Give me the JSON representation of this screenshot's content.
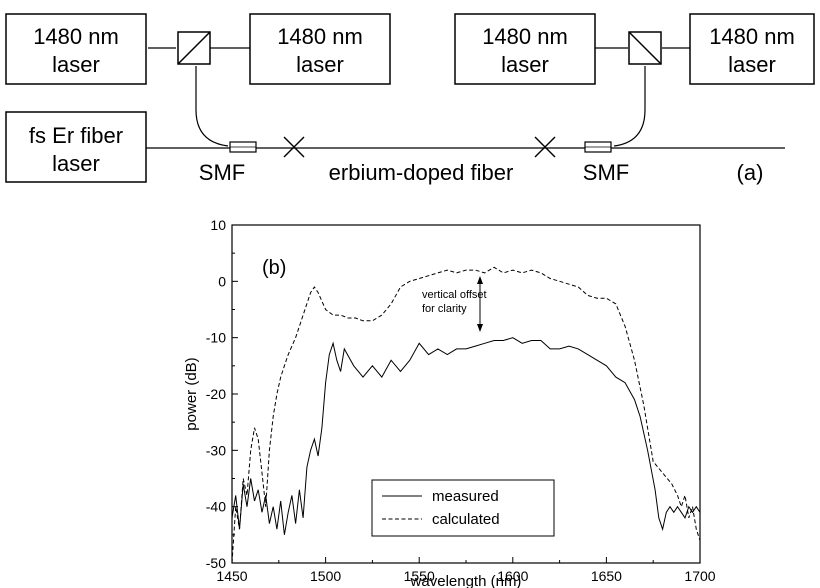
{
  "setup": {
    "boxes": [
      {
        "id": "laser-top-1",
        "lines": [
          "1480 nm",
          "laser"
        ]
      },
      {
        "id": "laser-top-2",
        "lines": [
          "1480 nm",
          "laser"
        ]
      },
      {
        "id": "laser-top-3",
        "lines": [
          "1480 nm",
          "laser"
        ]
      },
      {
        "id": "laser-top-4",
        "lines": [
          "1480 nm",
          "laser"
        ]
      },
      {
        "id": "fs-laser",
        "lines": [
          "fs Er fiber",
          "laser"
        ]
      }
    ],
    "labels": {
      "smf_left": "SMF",
      "edf": "erbium-doped fiber",
      "smf_right": "SMF",
      "panel": "(a)"
    }
  },
  "chart_data": {
    "type": "line",
    "panel_label": "(b)",
    "xlabel": "wavelength (nm)",
    "ylabel": "power (dB)",
    "xlim": [
      1450,
      1700
    ],
    "ylim": [
      -50,
      10
    ],
    "xticks": [
      1450,
      1500,
      1550,
      1600,
      1650,
      1700
    ],
    "yticks": [
      -50,
      -40,
      -30,
      -20,
      -10,
      0,
      10
    ],
    "annotation": [
      "vertical offset",
      "for clarity"
    ],
    "legend_position": "lower-center",
    "series": [
      {
        "name": "measured",
        "style": "solid",
        "x": [
          1450,
          1452,
          1454,
          1456,
          1458,
          1460,
          1462,
          1464,
          1466,
          1468,
          1470,
          1472,
          1474,
          1476,
          1478,
          1480,
          1482,
          1484,
          1486,
          1488,
          1490,
          1492,
          1494,
          1496,
          1498,
          1500,
          1502,
          1504,
          1506,
          1508,
          1510,
          1515,
          1520,
          1525,
          1530,
          1535,
          1540,
          1545,
          1550,
          1555,
          1560,
          1565,
          1570,
          1575,
          1580,
          1585,
          1590,
          1595,
          1600,
          1605,
          1610,
          1615,
          1620,
          1625,
          1630,
          1635,
          1640,
          1645,
          1650,
          1655,
          1660,
          1665,
          1668,
          1672,
          1676,
          1678,
          1680,
          1682,
          1684,
          1686,
          1688,
          1690,
          1692,
          1694,
          1696,
          1698,
          1700
        ],
        "values": [
          -42,
          -38,
          -44,
          -36,
          -40,
          -35,
          -39,
          -37,
          -41,
          -38,
          -43,
          -40,
          -44,
          -39,
          -45,
          -41,
          -38,
          -43,
          -37,
          -42,
          -33,
          -30,
          -28,
          -31,
          -26,
          -18,
          -13,
          -11,
          -14,
          -16,
          -12,
          -15,
          -17,
          -15,
          -17,
          -14,
          -16,
          -14,
          -11,
          -13,
          -12,
          -13,
          -12,
          -12,
          -11.5,
          -11,
          -10.5,
          -10.5,
          -10,
          -11,
          -10.5,
          -10.5,
          -12,
          -12,
          -11.5,
          -12,
          -13,
          -14,
          -15,
          -17,
          -18,
          -21,
          -24,
          -30,
          -37,
          -42,
          -44,
          -41,
          -40,
          -41,
          -40,
          -41,
          -42,
          -40,
          -41,
          -40,
          -41
        ]
      },
      {
        "name": "calculated",
        "style": "dashed",
        "x": [
          1450,
          1452,
          1454,
          1456,
          1458,
          1460,
          1462,
          1464,
          1466,
          1468,
          1470,
          1472,
          1474,
          1476,
          1478,
          1480,
          1484,
          1488,
          1492,
          1494,
          1496,
          1500,
          1504,
          1508,
          1512,
          1516,
          1520,
          1525,
          1530,
          1535,
          1540,
          1545,
          1550,
          1555,
          1560,
          1565,
          1570,
          1575,
          1580,
          1585,
          1590,
          1595,
          1600,
          1605,
          1610,
          1615,
          1620,
          1625,
          1630,
          1635,
          1640,
          1645,
          1650,
          1655,
          1660,
          1665,
          1670,
          1675,
          1680,
          1685,
          1688,
          1690,
          1692,
          1694,
          1696,
          1698,
          1700
        ],
        "values": [
          -50,
          -40,
          -44,
          -35,
          -38,
          -30,
          -26,
          -28,
          -34,
          -40,
          -30,
          -24,
          -20,
          -17,
          -15,
          -13,
          -10,
          -6,
          -2,
          -1,
          -2,
          -5,
          -6,
          -6,
          -6.5,
          -6.5,
          -7,
          -7,
          -6,
          -4,
          -1,
          0,
          0.5,
          1,
          1.5,
          2,
          1.5,
          2,
          2,
          1.5,
          2.5,
          1.5,
          2,
          1.5,
          2,
          1.5,
          0.5,
          0,
          -0.5,
          -1,
          -2.5,
          -3,
          -3,
          -4,
          -8,
          -14,
          -22,
          -32,
          -34,
          -36,
          -38,
          -40,
          -38,
          -42,
          -40,
          -44,
          -46
        ]
      }
    ]
  }
}
